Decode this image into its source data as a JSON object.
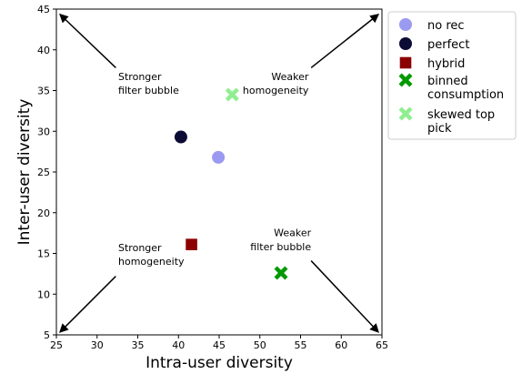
{
  "chart_data": {
    "type": "scatter",
    "xlabel": "Intra-user diversity",
    "ylabel": "Inter-user diversity",
    "xlim": [
      25,
      65
    ],
    "ylim": [
      5,
      45
    ],
    "xticks": [
      25,
      30,
      35,
      40,
      45,
      50,
      55,
      60,
      65
    ],
    "yticks": [
      5,
      10,
      15,
      20,
      25,
      30,
      35,
      40,
      45
    ],
    "grid": false,
    "legend_position": "outside-right-top",
    "series": [
      {
        "name": "no rec",
        "marker": "circle",
        "color": "#9a9af0",
        "x": 44.9,
        "y": 26.8
      },
      {
        "name": "perfect",
        "marker": "circle",
        "color": "#0b0b35",
        "x": 40.3,
        "y": 29.3
      },
      {
        "name": "hybrid",
        "marker": "square",
        "color": "#8b0000",
        "x": 41.6,
        "y": 16.1
      },
      {
        "name": "binned consumption",
        "marker": "x",
        "color": "#009900",
        "x": 52.6,
        "y": 12.6
      },
      {
        "name": "skewed top pick",
        "marker": "x",
        "color": "#90ee90",
        "x": 46.6,
        "y": 34.5
      }
    ],
    "annotations": [
      {
        "lines": [
          "Stronger",
          "filter bubble"
        ],
        "anchor": "start",
        "x": 32.6,
        "y": [
          36.3,
          34.6
        ],
        "arrow_from": [
          32.3,
          37.8
        ],
        "arrow_to": [
          25.5,
          44.3
        ]
      },
      {
        "lines": [
          "Weaker",
          "homogeneity"
        ],
        "anchor": "end",
        "x": 56.0,
        "y": [
          36.3,
          34.6
        ],
        "arrow_from": [
          56.3,
          37.8
        ],
        "arrow_to": [
          64.5,
          44.3
        ]
      },
      {
        "lines": [
          "Stronger",
          "homogeneity"
        ],
        "anchor": "start",
        "x": 32.6,
        "y": [
          15.3,
          13.6
        ],
        "arrow_from": [
          32.3,
          12.2
        ],
        "arrow_to": [
          25.5,
          5.4
        ]
      },
      {
        "lines": [
          "Weaker",
          "filter bubble"
        ],
        "anchor": "end",
        "x": 56.3,
        "y": [
          17.1,
          15.4
        ],
        "arrow_from": [
          56.3,
          14.1
        ],
        "arrow_to": [
          64.5,
          5.4
        ]
      }
    ]
  }
}
